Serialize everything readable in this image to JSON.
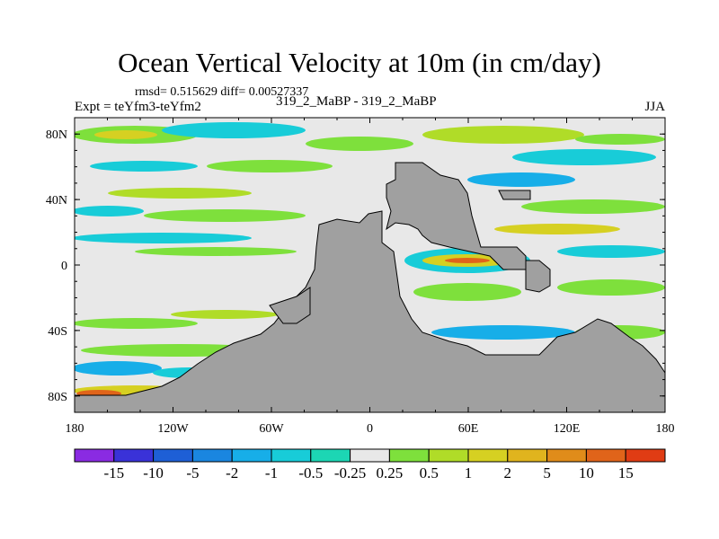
{
  "chart_data": {
    "type": "heatmap",
    "title": "Ocean Vertical Velocity at 10m (in cm/day)",
    "stats_text": "rmsd= 0.515629 diff= 0.00527337",
    "expt_text": "Expt = teYfm3-teYfm2",
    "case_text": "319_2_MaBP - 319_2_MaBP",
    "season": "JJA",
    "x_ticks": [
      "180",
      "120W",
      "60W",
      "0",
      "60E",
      "120E",
      "180"
    ],
    "x_tick_values": [
      -180,
      -120,
      -60,
      0,
      60,
      120,
      180
    ],
    "y_ticks": [
      "80N",
      "40N",
      "0",
      "40S",
      "80S"
    ],
    "y_tick_values": [
      80,
      40,
      0,
      -40,
      -80
    ],
    "xlim": [
      -180,
      180
    ],
    "ylim": [
      -90,
      90
    ],
    "colorbar": {
      "levels": [
        "-15",
        "-10",
        "-5",
        "-2",
        "-1",
        "-0.5",
        "-0.25",
        "0.25",
        "0.5",
        "1",
        "2",
        "5",
        "10",
        "15"
      ],
      "colors": [
        "#8a2be2",
        "#3a32d8",
        "#1e5fd6",
        "#1a86e0",
        "#17aee8",
        "#18ccd8",
        "#1cd6b4",
        "#e8e8e8",
        "#7ee03c",
        "#b0dc28",
        "#d6d022",
        "#e0b41e",
        "#e08c1a",
        "#e0641a",
        "#e03c14"
      ]
    },
    "land_color": "#a0a0a0",
    "neutral_color": "#e8e8e8"
  }
}
